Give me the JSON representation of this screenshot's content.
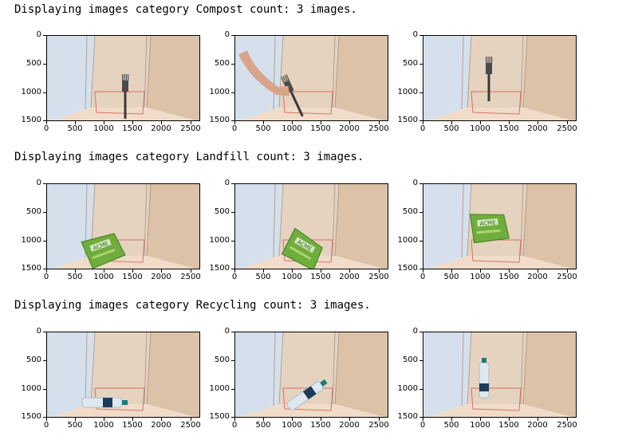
{
  "rows": [
    {
      "heading": "Displaying images category Compost count: 3 images.",
      "object": "fork"
    },
    {
      "heading": "Displaying images category Landfill count: 3 images.",
      "object": "chip-bag"
    },
    {
      "heading": "Displaying images category Recycling count: 3 images.",
      "object": "water-bottle"
    }
  ],
  "axis": {
    "y_ticks": [
      "0",
      "500",
      "1000",
      "1500"
    ],
    "x_ticks": [
      "0",
      "500",
      "1000",
      "1500",
      "2000",
      "2500"
    ]
  },
  "bag_label": "ACME"
}
